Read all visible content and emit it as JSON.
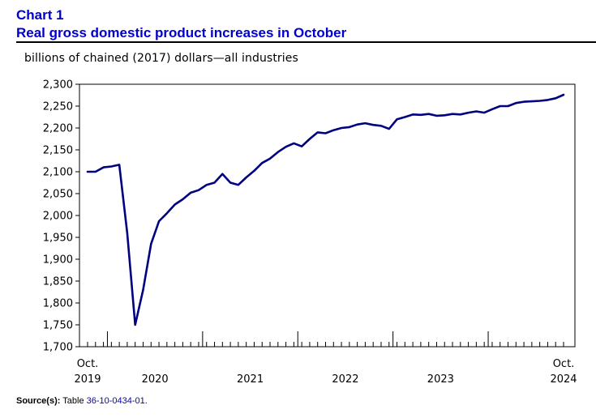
{
  "header": {
    "chart_number": "Chart 1",
    "title": "Real gross domestic product increases in October"
  },
  "units_label": "billions of chained (2017) dollars—all industries",
  "source": {
    "label": "Source(s):",
    "prefix": "Table ",
    "table_link": "36-10-0434-01",
    "suffix": "."
  },
  "colors": {
    "title": "#0000cc",
    "line": "#000080",
    "axis": "#000000",
    "link": "#0000cc"
  },
  "chart_data": {
    "type": "line",
    "title": "Real gross domestic product increases in October",
    "ylabel": "billions of chained (2017) dollars—all industries",
    "xlabel": "",
    "ylim": [
      1700,
      2300
    ],
    "yticks": [
      1700,
      1750,
      1800,
      1850,
      1900,
      1950,
      2000,
      2050,
      2100,
      2150,
      2200,
      2250,
      2300
    ],
    "ytick_labels": [
      "1,700",
      "1,750",
      "1,800",
      "1,850",
      "1,900",
      "1,950",
      "2,000",
      "2,050",
      "2,100",
      "2,150",
      "2,200",
      "2,250",
      "2,300"
    ],
    "x_start": "2019-10",
    "n_months": 61,
    "year_boundaries_after_month_index": [
      2,
      14,
      26,
      38,
      50
    ],
    "x_labels": [
      {
        "text": "Oct.",
        "month_index": 0,
        "row": 1
      },
      {
        "text": "2019",
        "month_index": 0,
        "row": 2
      },
      {
        "text": "2020",
        "month_index": 8.5,
        "row": 2
      },
      {
        "text": "2021",
        "month_index": 20.5,
        "row": 2
      },
      {
        "text": "2022",
        "month_index": 32.5,
        "row": 2
      },
      {
        "text": "2023",
        "month_index": 44.5,
        "row": 2
      },
      {
        "text": "Oct.",
        "month_index": 60,
        "row": 1
      },
      {
        "text": "2024",
        "month_index": 60,
        "row": 2
      }
    ],
    "grid": false,
    "series": [
      {
        "name": "Real GDP, all industries",
        "values": [
          2100,
          2100,
          2110,
          2112,
          2116,
          1960,
          1750,
          1830,
          1935,
          1987,
          2005,
          2025,
          2037,
          2052,
          2058,
          2070,
          2075,
          2095,
          2075,
          2070,
          2087,
          2102,
          2120,
          2130,
          2145,
          2157,
          2165,
          2158,
          2175,
          2190,
          2188,
          2195,
          2200,
          2202,
          2208,
          2211,
          2207,
          2205,
          2198,
          2220,
          2225,
          2231,
          2230,
          2232,
          2228,
          2229,
          2232,
          2231,
          2235,
          2238,
          2235,
          2243,
          2250,
          2250,
          2257,
          2260,
          2261,
          2262,
          2264,
          2268,
          2276
        ]
      }
    ]
  }
}
